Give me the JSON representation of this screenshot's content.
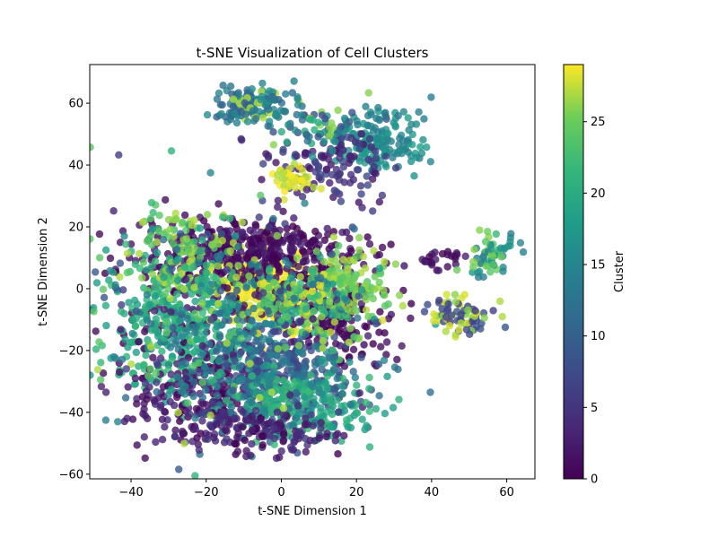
{
  "chart_data": {
    "type": "scatter",
    "title": "t-SNE Visualization of Cell Clusters",
    "xlabel": "t-SNE Dimension 1",
    "ylabel": "t-SNE Dimension 2",
    "xlim": [
      -51,
      67.5
    ],
    "ylim": [
      -61.5,
      72.5
    ],
    "xticks": [
      -40,
      -20,
      0,
      20,
      40,
      60
    ],
    "yticks": [
      -60,
      -40,
      -20,
      0,
      20,
      40,
      60
    ],
    "grid": false,
    "colormap": "viridis",
    "point_alpha": 0.8,
    "colorbar": {
      "label": "Cluster",
      "range": [
        0,
        29
      ],
      "ticks": [
        0,
        5,
        10,
        15,
        20,
        25
      ]
    },
    "point_groups": [
      {
        "x": -7.5,
        "y": 59.5,
        "sx": 5,
        "sy": 3.2,
        "n": 150,
        "color_values": [
          10,
          11,
          12,
          13,
          14,
          15,
          16,
          27
        ]
      },
      {
        "x": 25,
        "y": 48,
        "sx": 6,
        "sy": 5,
        "n": 170,
        "color_values": [
          14,
          15,
          16,
          17,
          18
        ]
      },
      {
        "x": 14,
        "y": 40,
        "sx": 8,
        "sy": 6,
        "n": 130,
        "color_values": [
          3,
          4,
          5,
          6,
          7,
          2
        ]
      },
      {
        "x": 3,
        "y": 35,
        "sx": 2.8,
        "sy": 2.5,
        "n": 40,
        "color_values": [
          27,
          28,
          29
        ]
      },
      {
        "x": 9,
        "y": 52,
        "sx": 6,
        "sy": 4,
        "n": 50,
        "color_values": [
          8,
          12,
          16,
          20,
          26
        ]
      },
      {
        "x": -5,
        "y": 0,
        "sx": 6,
        "sy": 6,
        "n": 260,
        "color_values": [
          28,
          29
        ]
      },
      {
        "x": -10,
        "y": 13,
        "sx": 13,
        "sy": 5,
        "n": 320,
        "color_values": [
          0,
          1,
          2,
          3
        ]
      },
      {
        "x": -12,
        "y": 2,
        "sx": 18,
        "sy": 10,
        "n": 200,
        "color_values": [
          0,
          1,
          2
        ]
      },
      {
        "x": 14,
        "y": -8,
        "sx": 7,
        "sy": 9,
        "n": 190,
        "color_values": [
          0,
          1,
          2
        ]
      },
      {
        "x": 18,
        "y": 2,
        "sx": 6,
        "sy": 5,
        "n": 120,
        "color_values": [
          24,
          25,
          26,
          27
        ]
      },
      {
        "x": -28,
        "y": -12,
        "sx": 9,
        "sy": 12,
        "n": 300,
        "color_values": [
          18,
          19,
          20,
          21,
          22
        ]
      },
      {
        "x": -25,
        "y": 10,
        "sx": 9,
        "sy": 8,
        "n": 130,
        "color_values": [
          22,
          24,
          26,
          27
        ]
      },
      {
        "x": -20,
        "y": -34,
        "sx": 11,
        "sy": 8,
        "n": 260,
        "color_values": [
          0,
          1,
          2,
          3,
          4
        ]
      },
      {
        "x": 0,
        "y": -28,
        "sx": 9,
        "sy": 9,
        "n": 260,
        "color_values": [
          7,
          8,
          9,
          10,
          11
        ]
      },
      {
        "x": 5,
        "y": -38,
        "sx": 10,
        "sy": 6,
        "n": 220,
        "color_values": [
          18,
          19,
          20,
          21,
          22
        ]
      },
      {
        "x": -8,
        "y": -20,
        "sx": 14,
        "sy": 14,
        "n": 240,
        "color_values": [
          12,
          13,
          14,
          15,
          16
        ]
      },
      {
        "x": -5,
        "y": -46,
        "sx": 9,
        "sy": 4,
        "n": 120,
        "color_values": [
          0,
          2,
          3,
          4,
          5
        ]
      },
      {
        "x": 5,
        "y": -6,
        "sx": 7,
        "sy": 6,
        "n": 120,
        "color_values": [
          20,
          22,
          24,
          26,
          28
        ]
      },
      {
        "x": -15,
        "y": -8,
        "sx": 20,
        "sy": 18,
        "n": 260,
        "color_values": [
          3,
          6,
          9,
          12,
          15,
          18,
          21,
          24,
          27
        ]
      },
      {
        "x": 44,
        "y": 10,
        "sx": 5,
        "sy": 2,
        "n": 25,
        "color_values": [
          0,
          1,
          2,
          3
        ]
      },
      {
        "x": 56,
        "y": 11,
        "sx": 3.5,
        "sy": 3.5,
        "n": 60,
        "color_values": [
          14,
          15,
          16,
          17,
          22,
          24,
          25,
          26
        ]
      },
      {
        "x": 47.5,
        "y": -8,
        "sx": 4,
        "sy": 3,
        "n": 80,
        "color_values": [
          6,
          7,
          8,
          9,
          26,
          27,
          28
        ]
      }
    ]
  }
}
